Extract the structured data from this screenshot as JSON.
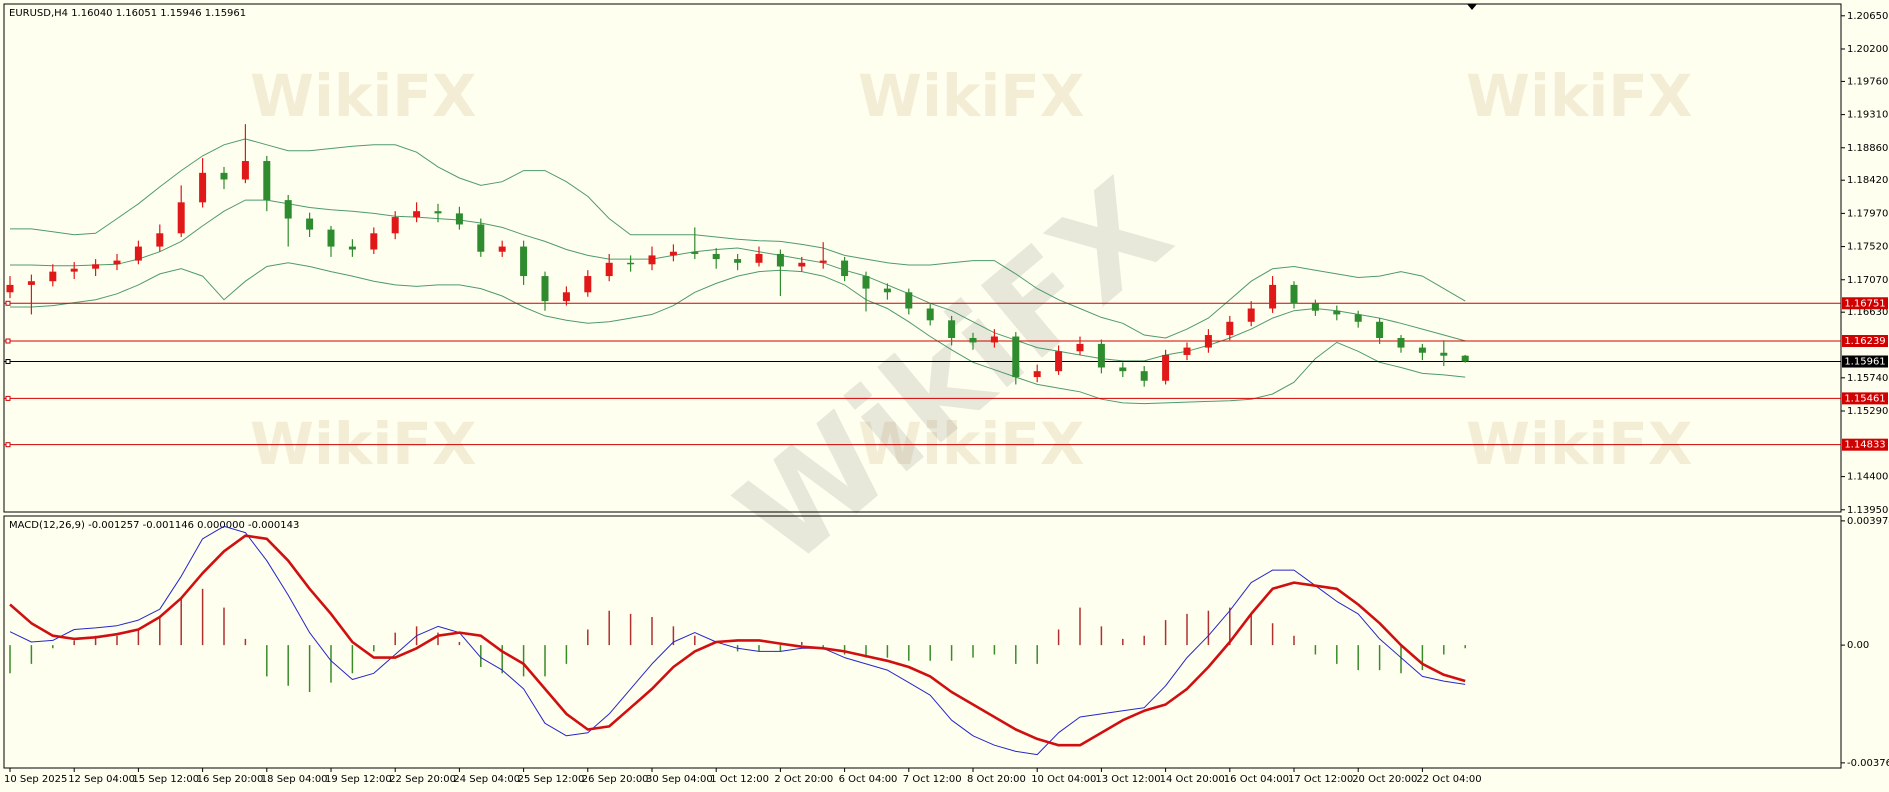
{
  "watermark": "WikiFX",
  "chart_data": [
    {
      "type": "candlestick",
      "title": "EURUSD,H4  1.16040 1.16051 1.15946 1.15961",
      "up_color": "#e01818",
      "down_color": "#2e8b2e",
      "categories": [
        "10 Sep 2025",
        null,
        null,
        "12 Sep 04:00",
        null,
        null,
        "15 Sep 12:00",
        null,
        null,
        "16 Sep 20:00",
        null,
        null,
        "18 Sep 04:00",
        null,
        null,
        "19 Sep 12:00",
        null,
        null,
        "22 Sep 20:00",
        null,
        null,
        "24 Sep 04:00",
        null,
        null,
        "25 Sep 12:00",
        null,
        null,
        "26 Sep 20:00",
        null,
        null,
        "30 Sep 04:00",
        null,
        null,
        "1 Oct 12:00",
        null,
        null,
        "2 Oct 20:00",
        null,
        null,
        "6 Oct 04:00",
        null,
        null,
        "7 Oct 12:00",
        null,
        null,
        "8 Oct 20:00",
        null,
        null,
        "10 Oct 04:00",
        null,
        null,
        "13 Oct 12:00",
        null,
        null,
        "14 Oct 20:00",
        null,
        null,
        "16 Oct 04:00",
        null,
        null,
        "17 Oct 12:00",
        null,
        null,
        "20 Oct 20:00",
        null,
        null,
        "22 Oct 04:00",
        null,
        null
      ],
      "open": [
        1.169,
        1.17,
        1.1705,
        1.1718,
        1.1722,
        1.1728,
        1.1733,
        1.1752,
        1.177,
        1.1812,
        1.1852,
        1.1843,
        1.1868,
        1.1815,
        1.179,
        1.1775,
        1.1752,
        1.1748,
        1.177,
        1.1792,
        1.18,
        1.1797,
        1.1782,
        1.1745,
        1.1752,
        1.1712,
        1.1678,
        1.169,
        1.1712,
        1.173,
        1.1728,
        1.174,
        1.1745,
        1.1742,
        1.1735,
        1.173,
        1.1742,
        1.1725,
        1.173,
        1.1733,
        1.1712,
        1.1695,
        1.169,
        1.1668,
        1.1652,
        1.1628,
        1.1622,
        1.163,
        1.1575,
        1.1583,
        1.161,
        1.162,
        1.1588,
        1.1583,
        1.157,
        1.1605,
        1.1615,
        1.1632,
        1.165,
        1.1668,
        1.17,
        1.1675,
        1.1665,
        1.166,
        1.165,
        1.1628,
        1.1615,
        1.1608,
        1.1604
      ],
      "high": [
        1.1712,
        1.1714,
        1.1728,
        1.1731,
        1.1735,
        1.1742,
        1.176,
        1.1782,
        1.1835,
        1.1872,
        1.186,
        1.1918,
        1.1875,
        1.1822,
        1.1798,
        1.178,
        1.1762,
        1.1778,
        1.18,
        1.1812,
        1.181,
        1.1806,
        1.179,
        1.176,
        1.176,
        1.1718,
        1.1698,
        1.172,
        1.1742,
        1.174,
        1.1752,
        1.1755,
        1.1778,
        1.175,
        1.1742,
        1.1752,
        1.1748,
        1.1738,
        1.1758,
        1.1738,
        1.1718,
        1.1702,
        1.1695,
        1.1674,
        1.1658,
        1.1635,
        1.164,
        1.1636,
        1.1592,
        1.1618,
        1.163,
        1.1626,
        1.1595,
        1.159,
        1.1612,
        1.1622,
        1.164,
        1.1658,
        1.1678,
        1.1712,
        1.1705,
        1.168,
        1.1672,
        1.1665,
        1.1655,
        1.1632,
        1.162,
        1.1625,
        1.16051
      ],
      "low": [
        1.1682,
        1.166,
        1.1698,
        1.1708,
        1.1712,
        1.172,
        1.1728,
        1.1745,
        1.1765,
        1.1805,
        1.183,
        1.1838,
        1.18,
        1.1752,
        1.1765,
        1.1738,
        1.1738,
        1.1742,
        1.1762,
        1.1785,
        1.1785,
        1.1775,
        1.1738,
        1.1738,
        1.17,
        1.1665,
        1.1672,
        1.1684,
        1.1705,
        1.1718,
        1.172,
        1.1732,
        1.1735,
        1.1722,
        1.172,
        1.1725,
        1.1685,
        1.1718,
        1.1722,
        1.1705,
        1.1664,
        1.168,
        1.166,
        1.1645,
        1.1618,
        1.1612,
        1.1615,
        1.1565,
        1.1568,
        1.1578,
        1.1605,
        1.158,
        1.1575,
        1.1562,
        1.1565,
        1.1598,
        1.1608,
        1.1625,
        1.1644,
        1.1662,
        1.1668,
        1.1658,
        1.1652,
        1.1642,
        1.162,
        1.1608,
        1.1598,
        1.159,
        1.15946
      ],
      "close": [
        1.17,
        1.1705,
        1.1718,
        1.1722,
        1.1728,
        1.1733,
        1.1752,
        1.177,
        1.1812,
        1.1852,
        1.1843,
        1.1868,
        1.1815,
        1.179,
        1.1775,
        1.1752,
        1.1748,
        1.177,
        1.1792,
        1.18,
        1.1797,
        1.1782,
        1.1745,
        1.1752,
        1.1712,
        1.1678,
        1.169,
        1.1712,
        1.173,
        1.1728,
        1.174,
        1.1745,
        1.1742,
        1.1735,
        1.173,
        1.1742,
        1.1725,
        1.173,
        1.1733,
        1.1712,
        1.1695,
        1.169,
        1.1668,
        1.1652,
        1.1628,
        1.1622,
        1.163,
        1.1575,
        1.1583,
        1.161,
        1.162,
        1.1588,
        1.1583,
        1.157,
        1.1605,
        1.1615,
        1.1632,
        1.165,
        1.1668,
        1.17,
        1.1675,
        1.1665,
        1.166,
        1.165,
        1.1628,
        1.1615,
        1.1608,
        1.1604,
        1.15961
      ],
      "bands": {
        "color": "#4f9a6c",
        "upper": [
          1.1776,
          1.1776,
          1.1772,
          1.1768,
          1.177,
          1.179,
          1.181,
          1.1833,
          1.1855,
          1.1875,
          1.189,
          1.1898,
          1.189,
          1.1882,
          1.1882,
          1.1885,
          1.1888,
          1.189,
          1.189,
          1.188,
          1.186,
          1.1845,
          1.1835,
          1.184,
          1.1855,
          1.1855,
          1.184,
          1.182,
          1.179,
          1.1768,
          1.1768,
          1.1768,
          1.1768,
          1.1765,
          1.1762,
          1.176,
          1.1759,
          1.1755,
          1.175,
          1.174,
          1.1735,
          1.173,
          1.1727,
          1.1727,
          1.173,
          1.1733,
          1.1733,
          1.1715,
          1.1695,
          1.168,
          1.1668,
          1.1656,
          1.1648,
          1.1632,
          1.1628,
          1.164,
          1.1655,
          1.168,
          1.1705,
          1.1722,
          1.1725,
          1.172,
          1.1715,
          1.171,
          1.1712,
          1.1718,
          1.1712,
          1.1695,
          1.1678
        ],
        "middle": [
          1.1727,
          1.1727,
          1.1726,
          1.1726,
          1.1727,
          1.1728,
          1.1735,
          1.1745,
          1.1759,
          1.178,
          1.18,
          1.1815,
          1.1815,
          1.181,
          1.1805,
          1.1802,
          1.18,
          1.1797,
          1.1793,
          1.1792,
          1.179,
          1.1788,
          1.1784,
          1.1778,
          1.1768,
          1.1759,
          1.1748,
          1.174,
          1.1735,
          1.1735,
          1.1735,
          1.174,
          1.1745,
          1.1748,
          1.175,
          1.1745,
          1.174,
          1.1735,
          1.173,
          1.172,
          1.1712,
          1.17,
          1.1688,
          1.1675,
          1.1665,
          1.165,
          1.1635,
          1.1625,
          1.1615,
          1.161,
          1.1605,
          1.16,
          1.1597,
          1.1597,
          1.1605,
          1.161,
          1.1618,
          1.1628,
          1.164,
          1.1655,
          1.1665,
          1.1668,
          1.1665,
          1.166,
          1.1655,
          1.1648,
          1.164,
          1.1632,
          1.1624
        ],
        "lower": [
          1.167,
          1.167,
          1.1672,
          1.1676,
          1.168,
          1.1688,
          1.17,
          1.1715,
          1.1722,
          1.1712,
          1.168,
          1.1705,
          1.1725,
          1.173,
          1.1725,
          1.1718,
          1.1712,
          1.1705,
          1.17,
          1.1698,
          1.17,
          1.17,
          1.1695,
          1.1685,
          1.167,
          1.1658,
          1.1652,
          1.1648,
          1.165,
          1.1655,
          1.166,
          1.1672,
          1.169,
          1.1702,
          1.1712,
          1.1718,
          1.172,
          1.1718,
          1.1712,
          1.17,
          1.168,
          1.1668,
          1.165,
          1.163,
          1.1612,
          1.1595,
          1.1585,
          1.1575,
          1.1565,
          1.156,
          1.1555,
          1.1545,
          1.154,
          1.1539,
          1.154,
          1.1541,
          1.1542,
          1.1543,
          1.1545,
          1.1552,
          1.1568,
          1.16,
          1.1622,
          1.161,
          1.1595,
          1.1588,
          1.158,
          1.1578,
          1.1575
        ]
      },
      "levels": [
        {
          "value": 1.16751,
          "color": "#d00000"
        },
        {
          "value": 1.16239,
          "color": "#d00000"
        },
        {
          "value": 1.15961,
          "color": "#000000"
        },
        {
          "value": 1.15461,
          "color": "#d00000"
        },
        {
          "value": 1.14833,
          "color": "#d00000"
        }
      ],
      "ylim": [
        1.1392,
        1.2081
      ],
      "yticks": [
        {
          "value": 1.2065,
          "label": "1.20650"
        },
        {
          "value": 1.202,
          "label": "1.20200"
        },
        {
          "value": 1.1976,
          "label": "1.19760"
        },
        {
          "value": 1.1931,
          "label": "1.19310"
        },
        {
          "value": 1.1886,
          "label": "1.18860"
        },
        {
          "value": 1.1842,
          "label": "1.18420"
        },
        {
          "value": 1.1797,
          "label": "1.17970"
        },
        {
          "value": 1.1752,
          "label": "1.17520"
        },
        {
          "value": 1.1707,
          "label": "1.17070"
        },
        {
          "value": 1.1663,
          "label": "1.16630"
        },
        {
          "value": 1.1574,
          "label": "1.15740"
        },
        {
          "value": 1.1529,
          "label": "1.15290"
        },
        {
          "value": 1.144,
          "label": "1.14400"
        },
        {
          "value": 1.1395,
          "label": "1.13950"
        }
      ]
    },
    {
      "type": "macd",
      "title": "MACD(12,26,9) -0.001257 -0.001146 0.000000 -0.000143",
      "ylim": [
        -0.00393,
        0.00413
      ],
      "yticks": [
        0.003974,
        {
          "value": 0,
          "label": "0.00"
        },
        -0.003766
      ],
      "series": [
        {
          "mark": "bar",
          "color": "#b03030",
          "negative_color": "#3a8a2a",
          "values": [
            -0.0009,
            -0.0006,
            -0.0001,
            0.00015,
            0.0003,
            0.0003,
            0.0005,
            0.0009,
            0.0015,
            0.0018,
            0.0012,
            0.0002,
            -0.001,
            -0.0013,
            -0.0015,
            -0.0012,
            -0.0009,
            -0.0002,
            0.0004,
            0.0006,
            0.0004,
            0.0001,
            -0.0007,
            -0.0009,
            -0.001,
            -0.001,
            -0.0006,
            0.0005,
            0.0011,
            0.001,
            0.0009,
            0.0006,
            0.0003,
            0,
            -0.0002,
            -0.0002,
            -0.0002,
            0.0001,
            -0.0001,
            -0.0003,
            -0.0004,
            -0.0004,
            -0.0005,
            -0.0005,
            -0.0005,
            -0.0004,
            -0.0003,
            -0.0006,
            -0.0006,
            0.0005,
            0.0012,
            0.0006,
            0.0002,
            0.0003,
            0.0008,
            0.001,
            0.0011,
            0.0012,
            0.001,
            0.0007,
            0.0003,
            -0.0003,
            -0.0006,
            -0.0008,
            -0.0008,
            -0.0009,
            -0.0008,
            -0.0003,
            -0.0001
          ]
        },
        {
          "mark": "line",
          "color": "#2626c8",
          "width": 1,
          "values": [
            0.00043,
            0.0001,
            0.00015,
            0.0005,
            0.00055,
            0.00062,
            0.0008,
            0.00115,
            0.0022,
            0.0034,
            0.0038,
            0.0036,
            0.0027,
            0.0016,
            0.0004,
            -0.0005,
            -0.0011,
            -0.0009,
            -0.0003,
            0.0003,
            0.0006,
            0.0004,
            -0.0004,
            -0.0008,
            -0.0014,
            -0.0025,
            -0.0029,
            -0.0028,
            -0.0022,
            -0.0014,
            -0.0006,
            0.0001,
            0.0004,
            0.0001,
            -0.0001,
            -0.0002,
            -0.0002,
            -0.0001,
            -0.0001,
            -0.0004,
            -0.0006,
            -0.0008,
            -0.0012,
            -0.0016,
            -0.0024,
            -0.0029,
            -0.0032,
            -0.0034,
            -0.0035,
            -0.0028,
            -0.0023,
            -0.0022,
            -0.0021,
            -0.002,
            -0.0013,
            -0.0004,
            0.0003,
            0.0011,
            0.002,
            0.0024,
            0.0024,
            0.0019,
            0.0014,
            0.001,
            0.0002,
            -0.0004,
            -0.001,
            -0.00115,
            -0.001257
          ]
        },
        {
          "mark": "line",
          "color": "#d01010",
          "width": 2.6,
          "values": [
            0.0013,
            0.0007,
            0.0003,
            0.0002,
            0.00025,
            0.00035,
            0.0005,
            0.0009,
            0.0015,
            0.0023,
            0.003,
            0.0035,
            0.0034,
            0.0027,
            0.0018,
            0.001,
            0.0001,
            -0.0004,
            -0.0004,
            -0.0001,
            0.0003,
            0.0004,
            0.0003,
            -0.0002,
            -0.0006,
            -0.0014,
            -0.0022,
            -0.0027,
            -0.0026,
            -0.002,
            -0.0014,
            -0.0007,
            -0.0002,
            0.0001,
            0.00015,
            0.00015,
            5e-05,
            -5e-05,
            -0.0001,
            -0.0002,
            -0.00035,
            -0.0005,
            -0.0007,
            -0.001,
            -0.0015,
            -0.0019,
            -0.0023,
            -0.0027,
            -0.003,
            -0.0032,
            -0.0032,
            -0.0028,
            -0.0024,
            -0.0021,
            -0.0019,
            -0.0014,
            -0.0007,
            0.0001,
            0.001,
            0.0018,
            0.002,
            0.0019,
            0.0018,
            0.0013,
            0.0007,
            0,
            -0.0006,
            -0.00095,
            -0.001146
          ]
        }
      ]
    }
  ]
}
